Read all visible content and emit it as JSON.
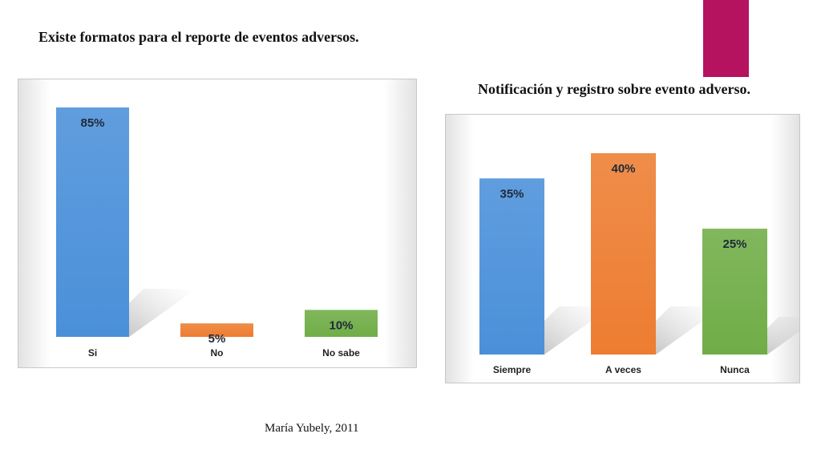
{
  "slide": {
    "footer": "María Yubely, 2011",
    "accent_color": "#b5135f"
  },
  "chart_data": [
    {
      "type": "bar",
      "title": "Existe formatos  para el reporte de eventos adversos.",
      "categories": [
        "Si",
        "No",
        "No sabe"
      ],
      "values": [
        85,
        5,
        10
      ],
      "data_labels": [
        "85%",
        "5%",
        "10%"
      ],
      "colors": [
        "#4a90d9",
        "#ed7d31",
        "#70ad47"
      ],
      "ylim": [
        0,
        85
      ],
      "grid": false,
      "legend": "none"
    },
    {
      "type": "bar",
      "title": "Notificación y registro sobre evento adverso.",
      "categories": [
        "Siempre",
        "A veces",
        "Nunca"
      ],
      "values": [
        35,
        40,
        25
      ],
      "data_labels": [
        "35%",
        "40%",
        "25%"
      ],
      "colors": [
        "#4a90d9",
        "#ed7d31",
        "#70ad47"
      ],
      "ylim": [
        0,
        40
      ],
      "grid": false,
      "legend": "none"
    }
  ]
}
